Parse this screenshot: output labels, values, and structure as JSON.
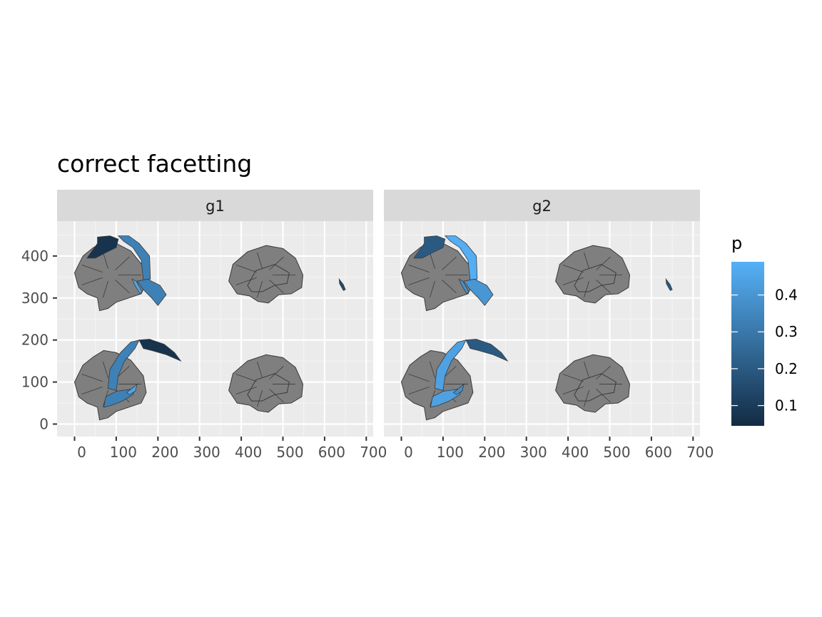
{
  "chart_data": {
    "type": "map",
    "title": "correct facetting",
    "xlabel": "",
    "ylabel": "",
    "xlim": [
      -20,
      710
    ],
    "ylim": [
      -25,
      480
    ],
    "x_ticks": [
      0,
      100,
      200,
      300,
      400,
      500,
      600,
      700
    ],
    "x_tick_labels": [
      "0",
      "100",
      "200",
      "300",
      "400",
      "500",
      "600",
      "700"
    ],
    "y_ticks": [
      0,
      100,
      200,
      300,
      400
    ],
    "y_tick_labels": [
      "0",
      "100",
      "200",
      "300",
      "400"
    ],
    "grid": true,
    "facets": [
      {
        "label": "g1",
        "regions": [
          {
            "region": "caudal middle frontal (left)",
            "p": 0.07
          },
          {
            "region": "precentral (left)",
            "p": 0.33
          },
          {
            "region": "transverse temporal (left)",
            "p": 0.45
          },
          {
            "region": "superior temporal (left)",
            "p": 0.33
          },
          {
            "region": "lateral occipital tip (left)",
            "p": 0.15
          },
          {
            "region": "precentral (right)",
            "p": 0.33
          },
          {
            "region": "caudal middle frontal (right)",
            "p": 0.07
          },
          {
            "region": "superior temporal (right)",
            "p": 0.33
          },
          {
            "region": "transverse temporal (right)",
            "p": 0.45
          }
        ]
      },
      {
        "label": "g2",
        "regions": [
          {
            "region": "caudal middle frontal (left)",
            "p": 0.2
          },
          {
            "region": "precentral (left)",
            "p": 0.48
          },
          {
            "region": "transverse temporal (left)",
            "p": 0.38
          },
          {
            "region": "superior temporal (left)",
            "p": 0.4
          },
          {
            "region": "lateral occipital tip (left)",
            "p": 0.2
          },
          {
            "region": "precentral (right)",
            "p": 0.44
          },
          {
            "region": "caudal middle frontal (right)",
            "p": 0.2
          },
          {
            "region": "superior temporal (right)",
            "p": 0.44
          },
          {
            "region": "transverse temporal (right)",
            "p": 0.38
          }
        ]
      }
    ],
    "legend": {
      "title": "p",
      "position": "right",
      "limits": [
        0.045,
        0.49
      ],
      "breaks": [
        0.1,
        0.2,
        0.3,
        0.4
      ],
      "labels": [
        "0.1",
        "0.2",
        "0.3",
        "0.4"
      ],
      "low_color": "#132B43",
      "high_color": "#56B1F7"
    },
    "na_color": "#7f7f7f",
    "panel_background": "#ebebeb",
    "strip_background": "#d9d9d9"
  }
}
